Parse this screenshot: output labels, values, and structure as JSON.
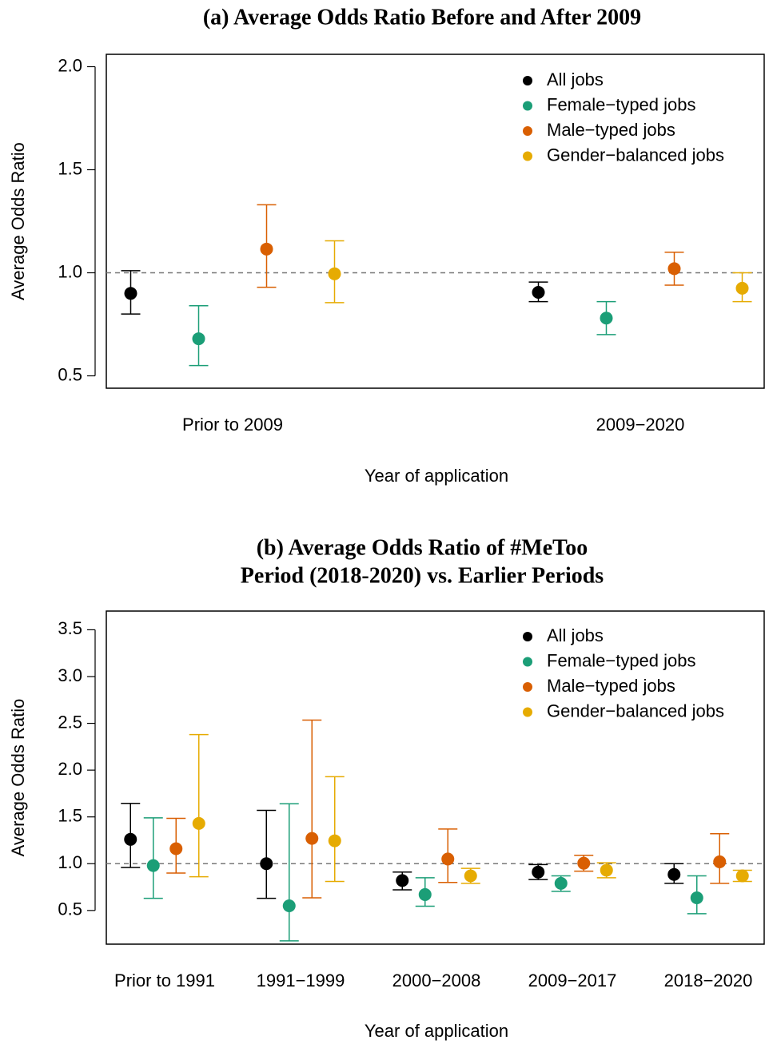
{
  "chart_data": [
    {
      "type": "errorbar",
      "title": "(a) Average Odds Ratio Before and After 2009",
      "y_label": "Average Odds Ratio",
      "x_label": "Year of application",
      "categories": [
        "Prior to 2009",
        "2009−2020"
      ],
      "ylim": [
        0.44,
        2.06
      ],
      "yticks": [
        {
          "value": 2,
          "label": "2.0"
        },
        1.5,
        {
          "value": 1,
          "label": "1.0"
        },
        0.5
      ],
      "reference_line": 1,
      "legend": "top-right",
      "series": [
        {
          "name": "All jobs",
          "color": "#000000",
          "values": [
            0.9,
            0.905
          ],
          "lower": [
            0.8,
            0.86
          ],
          "upper": [
            1.01,
            0.955
          ]
        },
        {
          "name": "Female−typed jobs",
          "color": "#1b9e77",
          "values": [
            0.68,
            0.78
          ],
          "lower": [
            0.55,
            0.7
          ],
          "upper": [
            0.84,
            0.86
          ]
        },
        {
          "name": "Male−typed jobs",
          "color": "#d95f02",
          "values": [
            1.115,
            1.02
          ],
          "lower": [
            0.93,
            0.94
          ],
          "upper": [
            1.33,
            1.1
          ]
        },
        {
          "name": "Gender−balanced jobs",
          "color": "#e6ab02",
          "values": [
            0.995,
            0.925
          ],
          "lower": [
            0.855,
            0.86
          ],
          "upper": [
            1.155,
            1.0
          ]
        }
      ]
    },
    {
      "type": "errorbar",
      "title": [
        "(b) Average Odds Ratio of #MeToo",
        "Period (2018-2020) vs. Earlier Periods"
      ],
      "y_label": "Average Odds Ratio",
      "x_label": "Year of application",
      "categories": [
        "Prior to 1991",
        "1991−1999",
        "2000−2008",
        "2009−2017",
        "2018−2020"
      ],
      "ylim": [
        0.14,
        3.7
      ],
      "yticks": [
        3.5,
        {
          "value": 3,
          "label": "3.0"
        },
        2.5,
        {
          "value": 2,
          "label": "2.0"
        },
        1.5,
        {
          "value": 1,
          "label": "1.0"
        },
        0.5
      ],
      "reference_line": 1,
      "legend": "top-right",
      "series": [
        {
          "name": "All jobs",
          "color": "#000000",
          "values": [
            1.26,
            1.0,
            0.82,
            0.91,
            0.885
          ],
          "lower": [
            0.96,
            0.63,
            0.72,
            0.83,
            0.79
          ],
          "upper": [
            1.645,
            1.57,
            0.91,
            0.99,
            1.0
          ]
        },
        {
          "name": "Female−typed jobs",
          "color": "#1b9e77",
          "values": [
            0.98,
            0.55,
            0.67,
            0.79,
            0.635
          ],
          "lower": [
            0.63,
            0.175,
            0.545,
            0.705,
            0.465
          ],
          "upper": [
            1.49,
            1.64,
            0.85,
            0.87,
            0.87
          ]
        },
        {
          "name": "Male−typed jobs",
          "color": "#d95f02",
          "values": [
            1.16,
            1.27,
            1.05,
            1.005,
            1.02
          ],
          "lower": [
            0.9,
            0.635,
            0.8,
            0.92,
            0.79
          ],
          "upper": [
            1.485,
            2.535,
            1.37,
            1.09,
            1.32
          ]
        },
        {
          "name": "Gender−balanced jobs",
          "color": "#e6ab02",
          "values": [
            1.43,
            1.245,
            0.87,
            0.93,
            0.87
          ],
          "lower": [
            0.86,
            0.81,
            0.79,
            0.85,
            0.81
          ],
          "upper": [
            2.38,
            1.93,
            0.95,
            1.01,
            0.93
          ]
        }
      ]
    }
  ]
}
